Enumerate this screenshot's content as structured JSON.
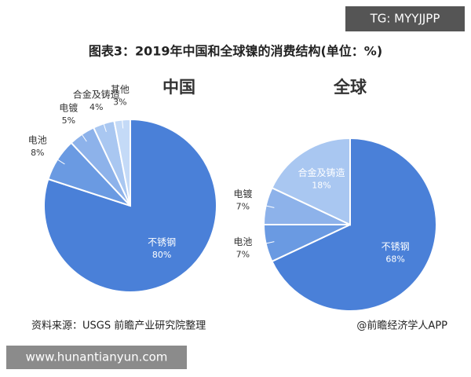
{
  "title": "图表3：2019年中国和全球镍的消费结构(单位：%)",
  "watermark": "TG: MYYJJPP",
  "source": "资料来源：USGS 前瞻产业研究院整理",
  "credit": "@前瞻经济学人APP",
  "site": "www.hunantianyun.com",
  "chart_data": [
    {
      "type": "pie",
      "title": "中国",
      "categories": [
        "不锈钢",
        "电池",
        "电镀",
        "合金及铸造",
        "其他"
      ],
      "values": [
        80,
        8,
        5,
        4,
        3
      ],
      "value_labels": [
        "80%",
        "8%",
        "5%",
        "4%",
        "3%"
      ],
      "colors": [
        "#4a80d8",
        "#6a9ae2",
        "#8db2ea",
        "#a9c7f1",
        "#c4daf7"
      ]
    },
    {
      "type": "pie",
      "title": "全球",
      "categories": [
        "不锈钢",
        "电池",
        "电镀",
        "合金及铸造"
      ],
      "values": [
        68,
        7,
        7,
        18
      ],
      "value_labels": [
        "68%",
        "7%",
        "7%",
        "18%"
      ],
      "colors": [
        "#4a80d8",
        "#6a9ae2",
        "#8db2ea",
        "#a9c7f1"
      ]
    }
  ]
}
